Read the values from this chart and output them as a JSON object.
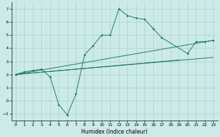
{
  "xlabel": "Humidex (Indice chaleur)",
  "xlim": [
    -0.5,
    23.5
  ],
  "ylim": [
    -1.5,
    7.5
  ],
  "xticks": [
    0,
    1,
    2,
    3,
    4,
    5,
    6,
    7,
    8,
    9,
    10,
    11,
    12,
    13,
    14,
    15,
    16,
    17,
    18,
    19,
    20,
    21,
    22,
    23
  ],
  "yticks": [
    -1,
    0,
    1,
    2,
    3,
    4,
    5,
    6,
    7
  ],
  "background_color": "#cceae7",
  "grid_color": "#aacfcc",
  "line_color": "#1a7a6e",
  "main_line_x": [
    0,
    1,
    2,
    3,
    4,
    5,
    6,
    7,
    8,
    9,
    10,
    11,
    12,
    13,
    14,
    15,
    16,
    17,
    20,
    21,
    22,
    23
  ],
  "main_line_y": [
    2.0,
    2.2,
    2.3,
    2.4,
    1.8,
    -0.3,
    -1.1,
    0.5,
    3.5,
    4.2,
    5.0,
    5.0,
    7.0,
    6.5,
    6.3,
    6.2,
    5.5,
    4.8,
    3.6,
    4.5,
    4.5,
    4.6
  ],
  "straight_lines": [
    {
      "x": [
        0,
        23
      ],
      "y": [
        2.0,
        4.6
      ]
    },
    {
      "x": [
        0,
        23
      ],
      "y": [
        2.0,
        3.3
      ]
    },
    {
      "x": [
        0,
        19
      ],
      "y": [
        2.0,
        3.1
      ]
    }
  ]
}
